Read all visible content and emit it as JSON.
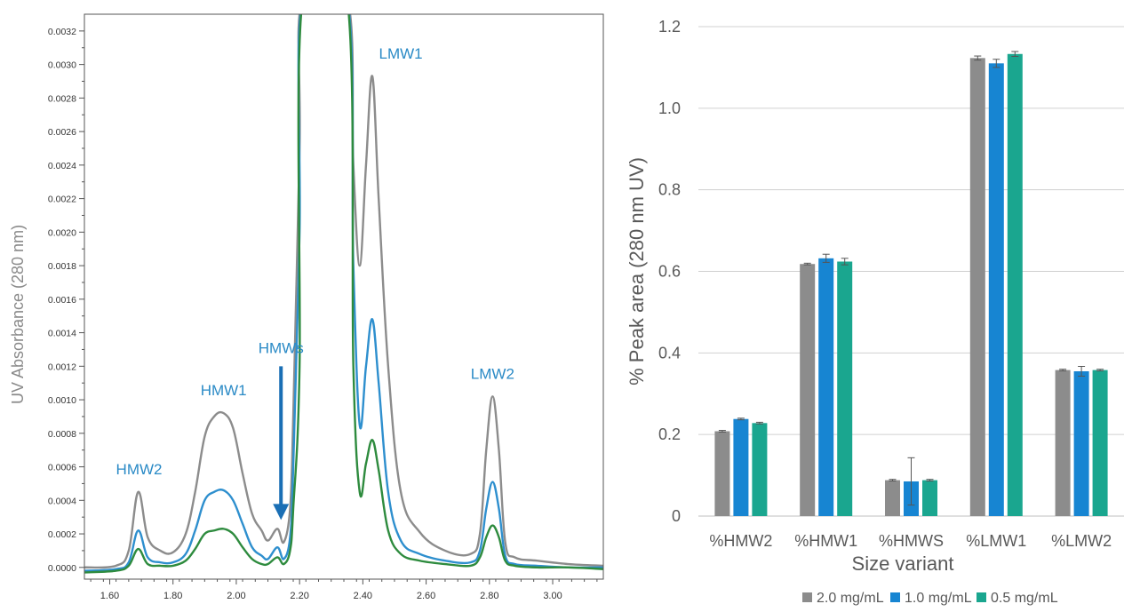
{
  "chart_data": [
    {
      "type": "line",
      "xlabel": "",
      "ylabel": "UV Absorbance (280 nm)",
      "xlim": [
        1.52,
        3.16
      ],
      "ylim": [
        -7e-05,
        0.0033
      ],
      "xticks": [
        1.6,
        1.8,
        2.0,
        2.2,
        2.4,
        2.6,
        2.8,
        3.0
      ],
      "xtick_labels": [
        "1.60",
        "1.80",
        "2.00",
        "2.20",
        "2.40",
        "2.60",
        "2.80",
        "3.00"
      ],
      "yticks": [
        0,
        0.0002,
        0.0004,
        0.0006,
        0.0008,
        0.001,
        0.0012,
        0.0014,
        0.0016,
        0.0018,
        0.002,
        0.0022,
        0.0024,
        0.0026,
        0.0028,
        0.003,
        0.0032
      ],
      "ytick_labels": [
        "0.0000",
        "0.0002",
        "0.0004",
        "0.0006",
        "0.0008",
        "0.0010",
        "0.0012",
        "0.0014",
        "0.0016",
        "0.0018",
        "0.0020",
        "0.0022",
        "0.0024",
        "0.0026",
        "0.0028",
        "0.0030",
        "0.0032"
      ],
      "grid": false,
      "series": [
        {
          "color": "#8c8c8c",
          "peak_heights": {
            "HMW2": 0.00045,
            "HMW1": 0.00092,
            "HMWs": 0.00023,
            "LMW1": 0.00293,
            "LMW2": 0.00102
          },
          "x": [
            1.52,
            1.62,
            1.66,
            1.69,
            1.72,
            1.76,
            1.8,
            1.84,
            1.87,
            1.9,
            1.93,
            1.96,
            1.99,
            2.02,
            2.05,
            2.08,
            2.1,
            2.13,
            2.15,
            2.17,
            2.18,
            2.2,
            2.21,
            2.35,
            2.37,
            2.39,
            2.41,
            2.43,
            2.45,
            2.48,
            2.52,
            2.58,
            2.66,
            2.74,
            2.77,
            2.79,
            2.81,
            2.83,
            2.85,
            2.88,
            2.95,
            3.05,
            3.16
          ],
          "y": [
            0,
            1e-05,
            0.0001,
            0.00045,
            0.00018,
            0.0001,
            9e-05,
            0.0002,
            0.00045,
            0.00078,
            0.0009,
            0.00092,
            0.00083,
            0.00056,
            0.00032,
            0.00022,
            0.00016,
            0.00023,
            0.00015,
            0.00035,
            0.0009,
            0.0025,
            0.0034,
            0.0034,
            0.0024,
            0.0018,
            0.0024,
            0.00293,
            0.0022,
            0.0012,
            0.00045,
            0.00021,
            0.0001,
            8e-05,
            0.0002,
            0.0007,
            0.00102,
            0.0007,
            0.00015,
            6e-05,
            4e-05,
            2e-05,
            1e-05
          ]
        },
        {
          "color": "#2e8fce",
          "peak_heights": {
            "HMW2": 0.00022,
            "HMW1": 0.00046,
            "HMWs": 0.00012,
            "LMW1": 0.00148,
            "LMW2": 0.00051
          },
          "x": [
            1.52,
            1.62,
            1.66,
            1.69,
            1.72,
            1.76,
            1.8,
            1.84,
            1.87,
            1.9,
            1.93,
            1.96,
            1.99,
            2.02,
            2.05,
            2.08,
            2.1,
            2.13,
            2.15,
            2.17,
            2.18,
            2.2,
            2.21,
            2.35,
            2.37,
            2.39,
            2.41,
            2.43,
            2.45,
            2.48,
            2.52,
            2.58,
            2.66,
            2.74,
            2.77,
            2.79,
            2.81,
            2.83,
            2.85,
            2.88,
            2.95,
            3.05,
            3.16
          ],
          "y": [
            -2e-05,
            -1e-05,
            3e-05,
            0.00022,
            6e-05,
            3e-05,
            3e-05,
            8e-05,
            0.00022,
            0.0004,
            0.00045,
            0.00046,
            0.0004,
            0.00026,
            0.00012,
            7e-05,
            5e-05,
            0.00012,
            5e-05,
            0.00018,
            0.0006,
            0.002,
            0.0034,
            0.0034,
            0.0018,
            0.00085,
            0.0012,
            0.00148,
            0.0011,
            0.00045,
            0.00016,
            8e-05,
            4e-05,
            3e-05,
            0.0001,
            0.00035,
            0.00051,
            0.00035,
            7e-05,
            2e-05,
            1e-05,
            0,
            0
          ]
        },
        {
          "color": "#2e8b3e",
          "peak_heights": {
            "HMW2": 0.00011,
            "HMW1": 0.00023,
            "HMWs": 6e-05,
            "LMW1": 0.00076,
            "LMW2": 0.00025
          },
          "x": [
            1.52,
            1.62,
            1.66,
            1.69,
            1.72,
            1.76,
            1.8,
            1.84,
            1.87,
            1.9,
            1.93,
            1.96,
            1.99,
            2.02,
            2.05,
            2.08,
            2.1,
            2.13,
            2.15,
            2.17,
            2.18,
            2.2,
            2.21,
            2.35,
            2.37,
            2.39,
            2.41,
            2.43,
            2.45,
            2.48,
            2.52,
            2.58,
            2.66,
            2.74,
            2.77,
            2.79,
            2.81,
            2.83,
            2.85,
            2.88,
            2.95,
            3.05,
            3.16
          ],
          "y": [
            -3e-05,
            -2e-05,
            1e-05,
            0.00011,
            2e-05,
            1e-05,
            1e-05,
            4e-05,
            0.00011,
            0.0002,
            0.00022,
            0.00023,
            0.0002,
            0.00012,
            5e-05,
            2e-05,
            2e-05,
            6e-05,
            2e-05,
            0.0001,
            0.00035,
            0.0012,
            0.0034,
            0.0034,
            0.0012,
            0.00045,
            0.00062,
            0.00076,
            0.00058,
            0.00022,
            8e-05,
            4e-05,
            2e-05,
            1e-05,
            6e-05,
            0.00018,
            0.00025,
            0.00018,
            4e-05,
            1e-05,
            0,
            0,
            -1e-05
          ]
        }
      ],
      "annotations": [
        {
          "text": "HMW2",
          "x": 1.69,
          "y": 0.00045
        },
        {
          "text": "HMW1",
          "x": 1.96,
          "y": 0.00092
        },
        {
          "text": "HMWs",
          "x": 2.13,
          "y": 0.00023
        },
        {
          "text": "LMW1",
          "x": 2.43,
          "y": 0.00293
        },
        {
          "text": "LMW2",
          "x": 2.81,
          "y": 0.00102
        }
      ],
      "annotation_color": "#2a8ac6",
      "arrow_color": "#1a6fb5"
    },
    {
      "type": "bar",
      "xlabel": "Size variant",
      "ylabel": "% Peak area (280 nm UV)",
      "ylim": [
        0,
        1.2
      ],
      "yticks": [
        0,
        0.2,
        0.4,
        0.6,
        0.8,
        1.0,
        1.2
      ],
      "ytick_labels": [
        "0",
        "0.2",
        "0.4",
        "0.6",
        "0.8",
        "1.0",
        "1.2"
      ],
      "grid": true,
      "legend_position": "bottom",
      "categories": [
        "%HMW2",
        "%HMW1",
        "%HMWS",
        "%LMW1",
        "%LMW2"
      ],
      "series": [
        {
          "name": "2.0 mg/mL",
          "color": "#8c8c8c",
          "values": [
            0.208,
            0.618,
            0.088,
            1.123,
            0.358
          ],
          "errors": [
            0.002,
            0.002,
            0.002,
            0.005,
            0.002
          ]
        },
        {
          "name": "1.0 mg/mL",
          "color": "#1785d2",
          "values": [
            0.238,
            0.632,
            0.085,
            1.11,
            0.355
          ],
          "errors": [
            0.002,
            0.01,
            0.058,
            0.01,
            0.012
          ]
        },
        {
          "name": "0.5 mg/mL",
          "color": "#1aa68f",
          "values": [
            0.228,
            0.624,
            0.088,
            1.133,
            0.358
          ],
          "errors": [
            0.002,
            0.008,
            0.002,
            0.006,
            0.002
          ]
        }
      ]
    }
  ]
}
